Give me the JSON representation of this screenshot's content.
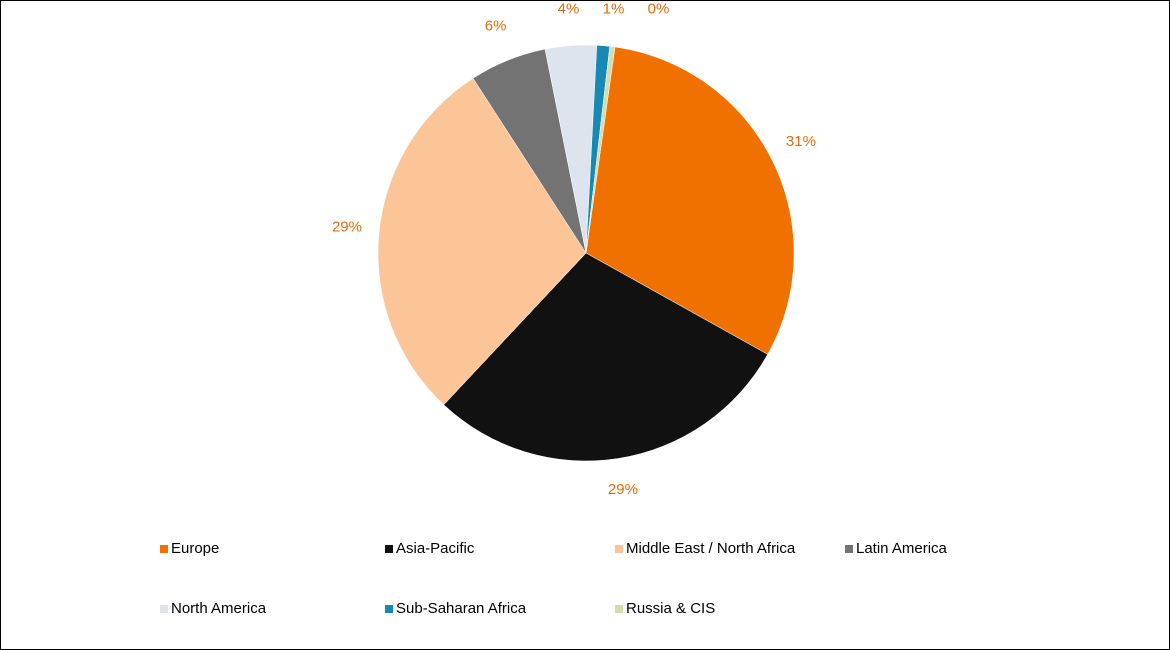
{
  "chart_data": {
    "type": "pie",
    "categories": [
      "Europe",
      "Asia-Pacific",
      "Middle East / North Africa",
      "Latin America",
      "North America",
      "Sub-Saharan Africa",
      "Russia & CIS"
    ],
    "values": [
      31,
      29,
      29,
      6,
      4,
      1,
      0.4
    ],
    "value_labels": [
      "31%",
      "29%",
      "29%",
      "6%",
      "4%",
      "1%",
      "0%"
    ],
    "colors": [
      "#f07000",
      "#111111",
      "#fbc597",
      "#737373",
      "#dde4ee",
      "#1689b4",
      "#d4dcb0"
    ]
  }
}
